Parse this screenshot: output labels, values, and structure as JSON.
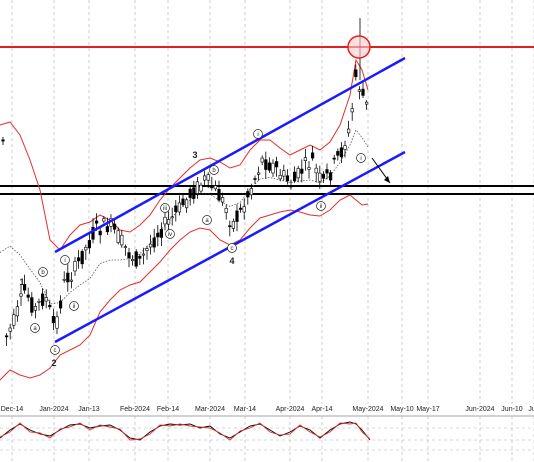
{
  "chart_data": {
    "type": "candlestick",
    "x_ticks": [
      "Dec-14",
      "Jan-2024",
      "Jan-13",
      "Feb-2024",
      "Feb-14",
      "Mar-2024",
      "Mar-14",
      "Apr-2024",
      "Apr-14",
      "May-2024",
      "May-10",
      "May-17",
      "Jun-2024",
      "Jun-10",
      "Jun"
    ],
    "grid": true,
    "colors": {
      "candle": "#000000",
      "resistance": "#e02020",
      "channel": "#1a1aff",
      "bollinger": "#e03030",
      "support": "#000000",
      "grid": "#b0b0b0",
      "oscillator": "#000000",
      "oscillator_signal": "#e03030"
    },
    "wave_labels": [
      {
        "text": "1"
      },
      {
        "text": "2"
      },
      {
        "text": "3"
      },
      {
        "text": "4"
      }
    ],
    "subwave_labels": [
      {
        "text": "a"
      },
      {
        "text": "b"
      },
      {
        "text": "c"
      },
      {
        "text": "i"
      },
      {
        "text": "ii"
      },
      {
        "text": "iii"
      },
      {
        "text": "iv"
      },
      {
        "text": "a"
      },
      {
        "text": "b"
      },
      {
        "text": "c"
      },
      {
        "text": "i"
      },
      {
        "text": "ii"
      },
      {
        "text": "i"
      }
    ]
  }
}
